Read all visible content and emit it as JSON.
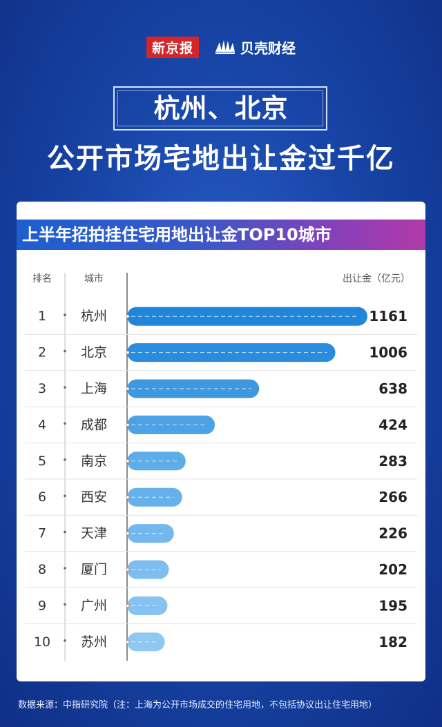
{
  "header": {
    "logo1": "新京报",
    "logo2": "贝壳财经"
  },
  "title_line1": "杭州、北京",
  "title_line2": "公开市场宅地出让金过千亿",
  "chart_title": "上半年招拍挂住宅用地出让金TOP10城市",
  "columns": {
    "rank": "排名",
    "city": "城市",
    "value": "出让金（亿元）"
  },
  "footer": "数据来源：中指研究院（注：上海为公开市场成交的住宅用地，不包括协议出让住宅用地）",
  "colors": {
    "bar_top": "#1c82d8",
    "bar_bottom": "#9fd3f3",
    "banner_start": "#1d5fcf",
    "banner_end": "#b23aa8",
    "background": "#1846a8"
  },
  "chart_data": {
    "type": "bar",
    "orientation": "horizontal",
    "title": "上半年招拍挂住宅用地出让金TOP10城市",
    "ylabel": "出让金（亿元）",
    "ranks": [
      "1",
      "2",
      "3",
      "4",
      "5",
      "6",
      "7",
      "8",
      "9",
      "10"
    ],
    "categories": [
      "杭州",
      "北京",
      "上海",
      "成都",
      "南京",
      "西安",
      "天津",
      "厦门",
      "广州",
      "苏州"
    ],
    "values": [
      1161,
      1006,
      638,
      424,
      283,
      266,
      226,
      202,
      195,
      182
    ]
  }
}
